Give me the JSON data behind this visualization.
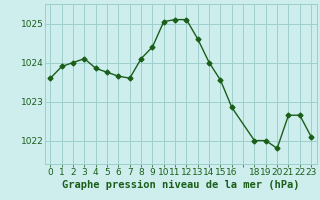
{
  "x": [
    0,
    1,
    2,
    3,
    4,
    5,
    6,
    7,
    8,
    9,
    10,
    11,
    12,
    13,
    14,
    15,
    16,
    18,
    19,
    20,
    21,
    22,
    23
  ],
  "y": [
    1023.6,
    1023.9,
    1024.0,
    1024.1,
    1023.85,
    1023.75,
    1023.65,
    1023.6,
    1024.1,
    1024.4,
    1025.05,
    1025.1,
    1025.1,
    1024.6,
    1024.0,
    1023.55,
    1022.85,
    1022.0,
    1022.0,
    1021.8,
    1022.65,
    1022.65,
    1022.1
  ],
  "line_color": "#1a5e1a",
  "marker": "D",
  "markersize": 2.5,
  "linewidth": 1.0,
  "bg_color": "#ceeeed",
  "grid_color": "#9ecfcc",
  "xlabel": "Graphe pression niveau de la mer (hPa)",
  "xlabel_color": "#1a5e1a",
  "ylabel_ticks": [
    1022,
    1023,
    1024,
    1025
  ],
  "xlim": [
    -0.5,
    23.5
  ],
  "ylim": [
    1021.4,
    1025.5
  ],
  "xtick_labels": [
    "0",
    "1",
    "2",
    "3",
    "4",
    "5",
    "6",
    "7",
    "8",
    "9",
    "10",
    "11",
    "12",
    "13",
    "14",
    "15",
    "16",
    "",
    "18",
    "19",
    "20",
    "21",
    "22",
    "23"
  ],
  "tick_color": "#1a5e1a",
  "tick_fontsize": 6.5,
  "xlabel_fontsize": 7.5
}
